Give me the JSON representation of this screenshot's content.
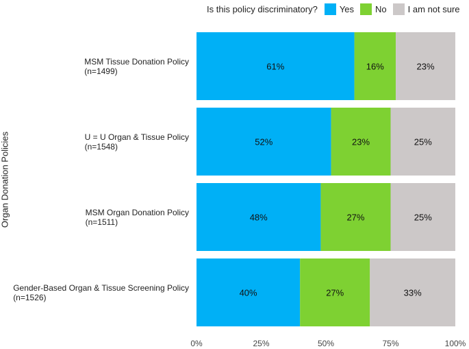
{
  "chart_data": {
    "type": "bar",
    "orientation": "horizontal",
    "stacked": true,
    "legend": {
      "title": "Is this policy discriminatory?",
      "placement": "top",
      "entries": [
        "Yes",
        "No",
        "I am not sure"
      ]
    },
    "ylabel": "Organ Donation Policies",
    "xlabel": "",
    "xlim": [
      0,
      100
    ],
    "x_ticks": [
      "0%",
      "25%",
      "50%",
      "75%",
      "100%"
    ],
    "grid": false,
    "categories": [
      {
        "name": "MSM Tissue Donation Policy",
        "n": "(n=1499)"
      },
      {
        "name": "U = U Organ & Tissue Policy",
        "n": "(n=1548)"
      },
      {
        "name": "MSM Organ Donation Policy",
        "n": "(n=1511)"
      },
      {
        "name": "Gender-Based Organ & Tissue Screening Policy",
        "n": "(n=1526)"
      }
    ],
    "series": [
      {
        "name": "Yes",
        "color": "#00b0f6",
        "values": [
          61,
          52,
          48,
          40
        ],
        "labels": [
          "61%",
          "52%",
          "48%",
          "40%"
        ]
      },
      {
        "name": "No",
        "color": "#7ed132",
        "values": [
          16,
          23,
          27,
          27
        ],
        "labels": [
          "16%",
          "23%",
          "27%",
          "27%"
        ]
      },
      {
        "name": "I am not sure",
        "color": "#ccc8c8",
        "values": [
          23,
          25,
          25,
          33
        ],
        "labels": [
          "23%",
          "25%",
          "25%",
          "33%"
        ]
      }
    ]
  }
}
